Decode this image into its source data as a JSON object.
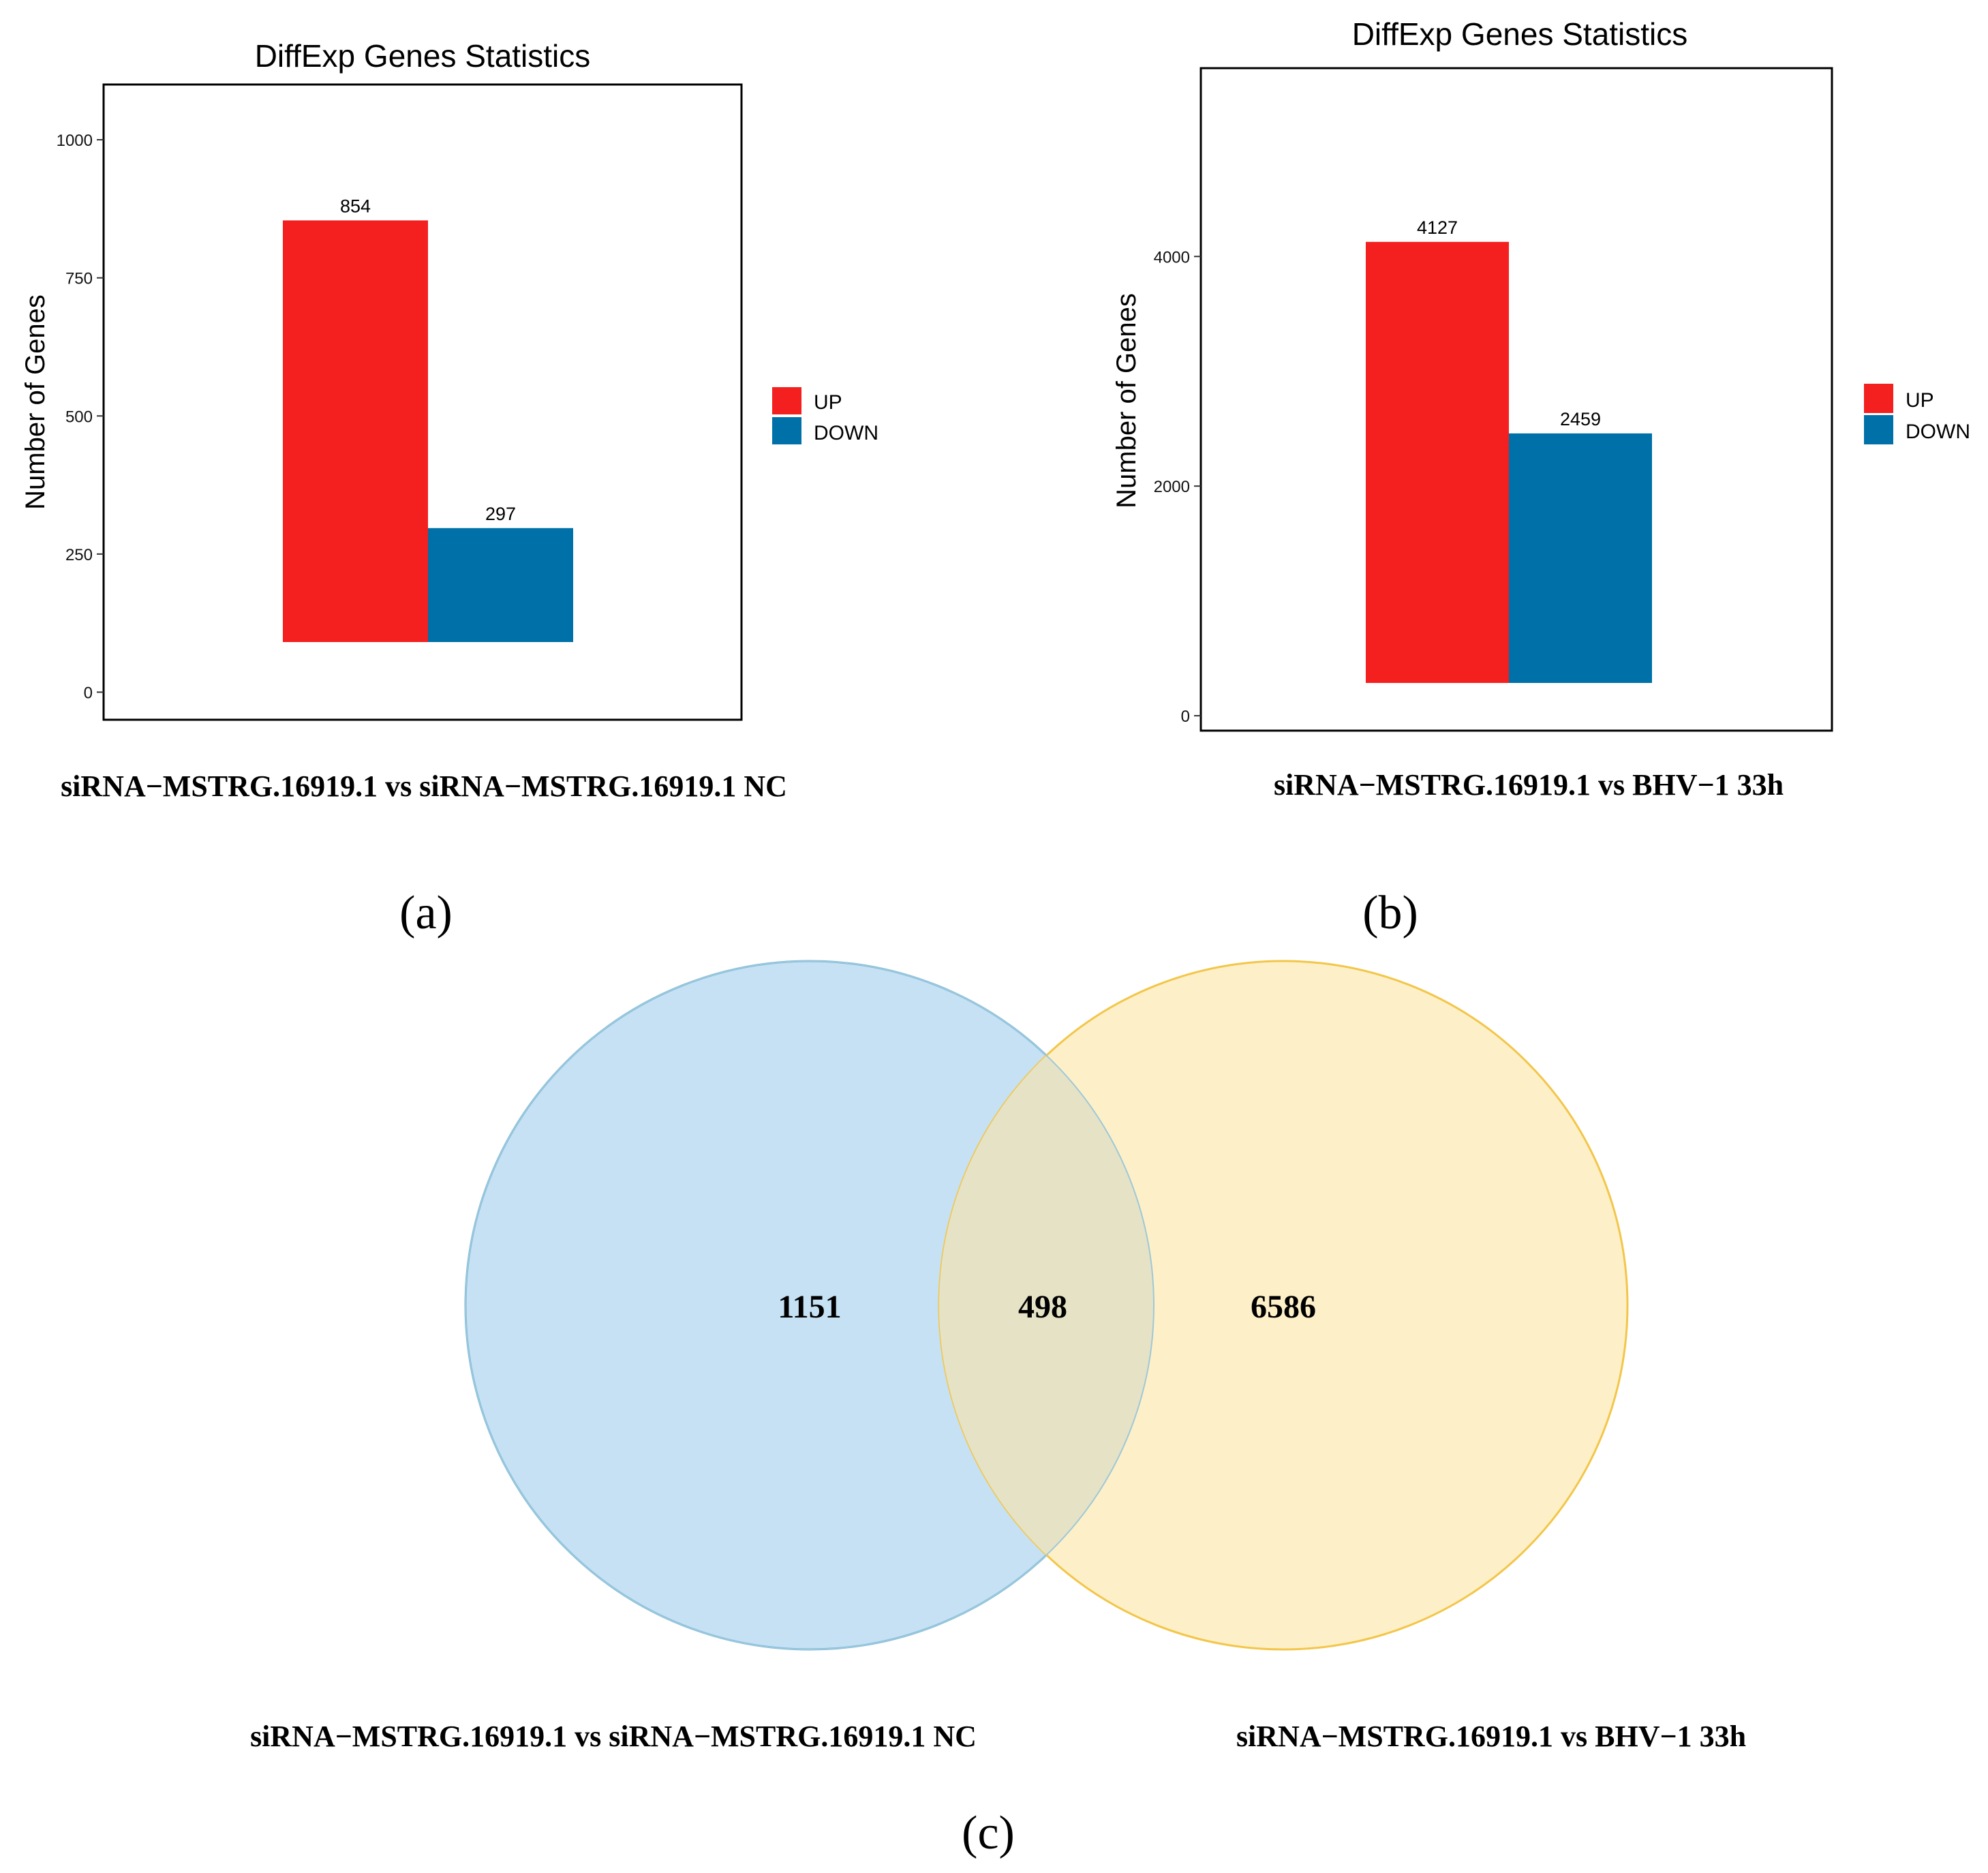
{
  "panels": {
    "a": {
      "letter": "(a)",
      "caption": "siRNA−MSTRG.16919.1 vs siRNA−MSTRG.16919.1 NC"
    },
    "b": {
      "letter": "(b)",
      "caption": "siRNA−MSTRG.16919.1 vs BHV−1 33h"
    },
    "c": {
      "letter": "(c)",
      "left_caption": "siRNA−MSTRG.16919.1 vs siRNA−MSTRG.16919.1 NC",
      "right_caption": "siRNA−MSTRG.16919.1 vs BHV−1 33h"
    }
  },
  "colors": {
    "up": "#f41f1f",
    "down": "#0071a8",
    "venn_left_fill": "#c5e1f3",
    "venn_left_stroke": "#6fb3de",
    "venn_right_fill": "#fdf0c8",
    "venn_right_stroke": "#f3c64a",
    "venn_overlap_fill": "#e6e2c6"
  },
  "chart_data": [
    {
      "type": "bar",
      "title": "DiffExp Genes Statistics",
      "xlabel": "",
      "ylabel": "Number of Genes",
      "categories": [
        ""
      ],
      "series": [
        {
          "name": "UP",
          "values": [
            854
          ],
          "labels": [
            "854"
          ]
        },
        {
          "name": "DOWN",
          "values": [
            297
          ],
          "labels": [
            "297"
          ]
        }
      ],
      "ylim": [
        -50,
        1100
      ],
      "yticks": [
        0,
        250,
        500,
        750,
        1000
      ],
      "ytick_labels": [
        "0",
        "250",
        "500",
        "750",
        "1000"
      ],
      "legend": [
        "UP",
        "DOWN"
      ],
      "legend_position": "right",
      "grid": false
    },
    {
      "type": "bar",
      "title": "DiffExp Genes Statistics",
      "xlabel": "",
      "ylabel": "Number of Genes",
      "categories": [
        ""
      ],
      "series": [
        {
          "name": "UP",
          "values": [
            4127
          ],
          "labels": [
            "4127"
          ]
        },
        {
          "name": "DOWN",
          "values": [
            2459
          ],
          "labels": [
            "2459"
          ]
        }
      ],
      "ylim": [
        -130,
        5640
      ],
      "yticks": [
        0,
        2000,
        4000
      ],
      "ytick_labels": [
        "0",
        "2000",
        "4000"
      ],
      "legend": [
        "UP",
        "DOWN"
      ],
      "legend_position": "right",
      "grid": false
    },
    {
      "type": "venn",
      "sets": [
        {
          "name": "siRNA−MSTRG.16919.1 vs siRNA−MSTRG.16919.1 NC",
          "only": 1151
        },
        {
          "name": "siRNA−MSTRG.16919.1 vs BHV−1 33h",
          "only": 6586
        }
      ],
      "intersection": 498,
      "labels": {
        "left": "1151",
        "intersection": "498",
        "right": "6586"
      }
    }
  ]
}
